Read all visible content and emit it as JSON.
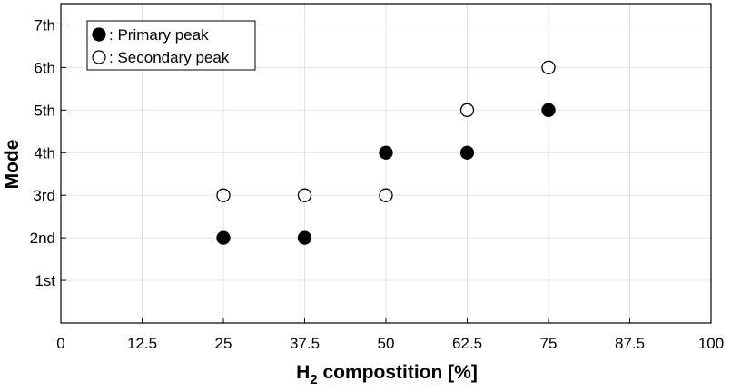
{
  "chart_data": {
    "type": "scatter",
    "xlabel_main": "H",
    "xlabel_sub": "2",
    "xlabel_rest": " compostition [%]",
    "ylabel": "Mode",
    "xlim": [
      0,
      100
    ],
    "ylim": [
      0,
      7.5
    ],
    "x_ticks": [
      0,
      12.5,
      25,
      37.5,
      50,
      62.5,
      75,
      87.5,
      100
    ],
    "x_tick_labels": [
      "0",
      "12.5",
      "25",
      "37.5",
      "50",
      "62.5",
      "75",
      "87.5",
      "100"
    ],
    "y_ticks": [
      1,
      2,
      3,
      4,
      5,
      6,
      7
    ],
    "y_tick_labels": [
      "1st",
      "2nd",
      "3rd",
      "4th",
      "5th",
      "6th",
      "7th"
    ],
    "grid": true,
    "legend_position": "top-left",
    "series": [
      {
        "name": ": Primary peak",
        "marker": "filled-circle",
        "color": "#000000",
        "points": [
          [
            25,
            2
          ],
          [
            37.5,
            2
          ],
          [
            50,
            4
          ],
          [
            62.5,
            4
          ],
          [
            75,
            5
          ]
        ]
      },
      {
        "name": ": Secondary peak",
        "marker": "open-circle",
        "color": "#000000",
        "points": [
          [
            25,
            3
          ],
          [
            37.5,
            3
          ],
          [
            50,
            3
          ],
          [
            62.5,
            5
          ],
          [
            75,
            6
          ]
        ]
      }
    ]
  }
}
